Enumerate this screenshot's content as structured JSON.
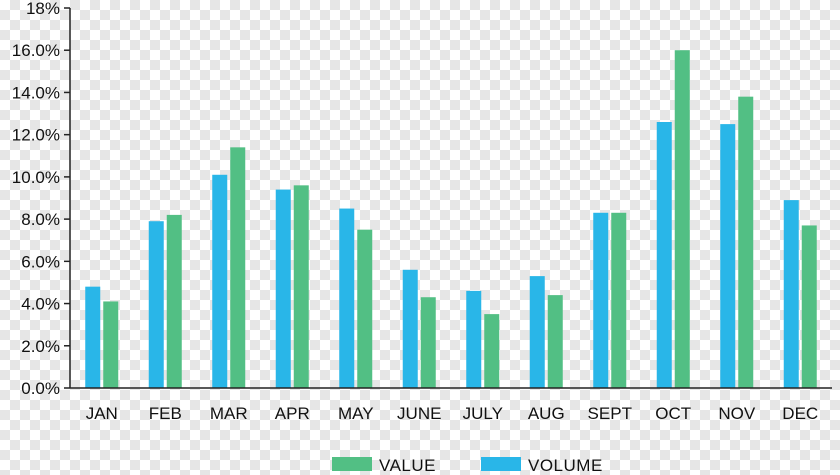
{
  "chart_data": {
    "type": "bar",
    "categories": [
      "JAN",
      "FEB",
      "MAR",
      "APR",
      "MAY",
      "JUNE",
      "JULY",
      "AUG",
      "SEPT",
      "OCT",
      "NOV",
      "DEC"
    ],
    "series": [
      {
        "name": "VOLUME",
        "color": "#29b6e8",
        "values": [
          4.8,
          7.9,
          10.1,
          9.4,
          8.5,
          5.6,
          4.6,
          5.3,
          8.3,
          12.6,
          12.5,
          8.9
        ]
      },
      {
        "name": "VALUE",
        "color": "#52bf84",
        "values": [
          4.1,
          8.2,
          11.4,
          9.6,
          7.5,
          4.3,
          3.5,
          4.4,
          8.3,
          16.0,
          13.8,
          7.7
        ]
      }
    ],
    "y_ticks": [
      "0.0%",
      "2.0%",
      "4.0%",
      "6.0%",
      "8.0%",
      "10.0%",
      "12.0%",
      "14.0%",
      "16.0%",
      "18%"
    ],
    "ylim": [
      0,
      18
    ],
    "grid": false,
    "legend_position": "bottom-center",
    "legend_order": [
      "VALUE",
      "VOLUME"
    ],
    "title": "",
    "xlabel": "",
    "ylabel": ""
  }
}
